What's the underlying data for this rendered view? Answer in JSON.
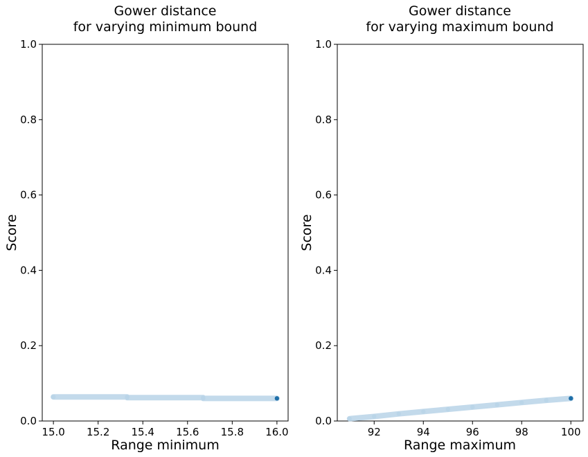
{
  "chart_data": [
    {
      "type": "scatter",
      "title_lines": [
        "Gower distance",
        "for varying minimum bound"
      ],
      "xlabel": "Range minimum",
      "ylabel": "Score",
      "xlim": [
        14.95,
        16.05
      ],
      "ylim": [
        0.0,
        1.0
      ],
      "xticks": [
        "15.0",
        "15.2",
        "15.4",
        "15.6",
        "15.8",
        "16.0"
      ],
      "xtick_values": [
        15.0,
        15.2,
        15.4,
        15.6,
        15.8,
        16.0
      ],
      "yticks": [
        "0.0",
        "0.2",
        "0.4",
        "0.6",
        "0.8",
        "1.0"
      ],
      "ytick_values": [
        0.0,
        0.2,
        0.4,
        0.6,
        0.8,
        1.0
      ],
      "grid": false,
      "series": [
        {
          "color": "#b9d4e8",
          "points": [
            [
              15.0,
              0.064
            ],
            [
              15.33,
              0.064
            ],
            [
              15.33,
              0.062
            ],
            [
              15.67,
              0.062
            ],
            [
              15.67,
              0.06
            ],
            [
              16.0,
              0.06
            ]
          ]
        }
      ],
      "highlight": {
        "x": 16.0,
        "y": 0.06,
        "color": "#1f6fa8"
      }
    },
    {
      "type": "scatter",
      "title_lines": [
        "Gower distance",
        "for varying maximum bound"
      ],
      "xlabel": "Range maximum",
      "ylabel": "Score",
      "xlim": [
        90.5,
        100.5
      ],
      "ylim": [
        0.0,
        1.0
      ],
      "xticks": [
        "92",
        "94",
        "96",
        "98",
        "100"
      ],
      "xtick_values": [
        92,
        94,
        96,
        98,
        100
      ],
      "yticks": [
        "0.0",
        "0.2",
        "0.4",
        "0.6",
        "0.8",
        "1.0"
      ],
      "ytick_values": [
        0.0,
        0.2,
        0.4,
        0.6,
        0.8,
        1.0
      ],
      "grid": false,
      "series": [
        {
          "color": "#b9d4e8",
          "points": [
            [
              91.0,
              0.006
            ],
            [
              92.0,
              0.012
            ],
            [
              93.0,
              0.019
            ],
            [
              94.0,
              0.025
            ],
            [
              95.0,
              0.031
            ],
            [
              96.0,
              0.037
            ],
            [
              97.0,
              0.043
            ],
            [
              98.0,
              0.049
            ],
            [
              99.0,
              0.055
            ],
            [
              100.0,
              0.06
            ]
          ]
        }
      ],
      "highlight": {
        "x": 100.0,
        "y": 0.06,
        "color": "#1f6fa8"
      }
    }
  ]
}
